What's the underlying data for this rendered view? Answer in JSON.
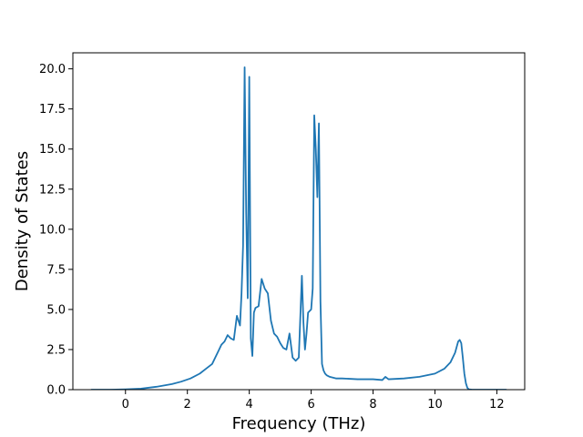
{
  "chart_data": {
    "type": "line",
    "title": "",
    "xlabel": "Frequency (THz)",
    "ylabel": "Density of States",
    "xlim": [
      -1.7,
      12.9
    ],
    "ylim": [
      0.0,
      21.0
    ],
    "xticks": [
      0,
      2,
      4,
      6,
      8,
      10,
      12
    ],
    "yticks": [
      0.0,
      2.5,
      5.0,
      7.5,
      10.0,
      12.5,
      15.0,
      17.5,
      20.0
    ],
    "xtick_labels": [
      "0",
      "2",
      "4",
      "6",
      "8",
      "10",
      "12"
    ],
    "ytick_labels": [
      "0.0",
      "2.5",
      "5.0",
      "7.5",
      "10.0",
      "12.5",
      "15.0",
      "17.5",
      "20.0"
    ],
    "grid": false,
    "series": [
      {
        "color": "#1f77b4",
        "x": [
          -1.1,
          -0.5,
          0.0,
          0.5,
          1.0,
          1.5,
          1.8,
          2.1,
          2.4,
          2.6,
          2.8,
          3.0,
          3.1,
          3.2,
          3.3,
          3.4,
          3.5,
          3.6,
          3.7,
          3.75,
          3.8,
          3.85,
          3.9,
          3.95,
          4.0,
          4.05,
          4.1,
          4.15,
          4.2,
          4.3,
          4.4,
          4.5,
          4.6,
          4.7,
          4.8,
          4.9,
          5.0,
          5.1,
          5.2,
          5.3,
          5.4,
          5.5,
          5.6,
          5.7,
          5.75,
          5.8,
          5.85,
          5.9,
          6.0,
          6.05,
          6.1,
          6.15,
          6.2,
          6.25,
          6.3,
          6.35,
          6.4,
          6.45,
          6.5,
          6.6,
          6.8,
          7.0,
          7.5,
          8.0,
          8.3,
          8.4,
          8.5,
          9.0,
          9.5,
          10.0,
          10.3,
          10.5,
          10.65,
          10.75,
          10.8,
          10.85,
          10.9,
          10.95,
          11.0,
          11.05,
          11.1,
          11.2,
          12.3
        ],
        "y": [
          0.0,
          0.0,
          0.02,
          0.06,
          0.18,
          0.35,
          0.5,
          0.7,
          1.0,
          1.3,
          1.6,
          2.4,
          2.8,
          3.0,
          3.4,
          3.2,
          3.1,
          4.6,
          4.0,
          6.0,
          9.0,
          20.1,
          11.0,
          5.7,
          19.5,
          3.2,
          2.1,
          4.8,
          5.1,
          5.2,
          6.9,
          6.3,
          6.0,
          4.3,
          3.5,
          3.3,
          2.9,
          2.6,
          2.5,
          3.5,
          2.0,
          1.8,
          2.0,
          7.1,
          4.2,
          2.5,
          3.5,
          4.8,
          5.0,
          6.3,
          17.1,
          15.0,
          12.0,
          16.6,
          5.5,
          1.6,
          1.2,
          1.0,
          0.9,
          0.8,
          0.7,
          0.7,
          0.65,
          0.65,
          0.6,
          0.8,
          0.65,
          0.7,
          0.8,
          1.0,
          1.3,
          1.7,
          2.3,
          3.0,
          3.1,
          2.9,
          2.0,
          1.0,
          0.4,
          0.1,
          0.02,
          0.0,
          0.0
        ]
      }
    ]
  }
}
